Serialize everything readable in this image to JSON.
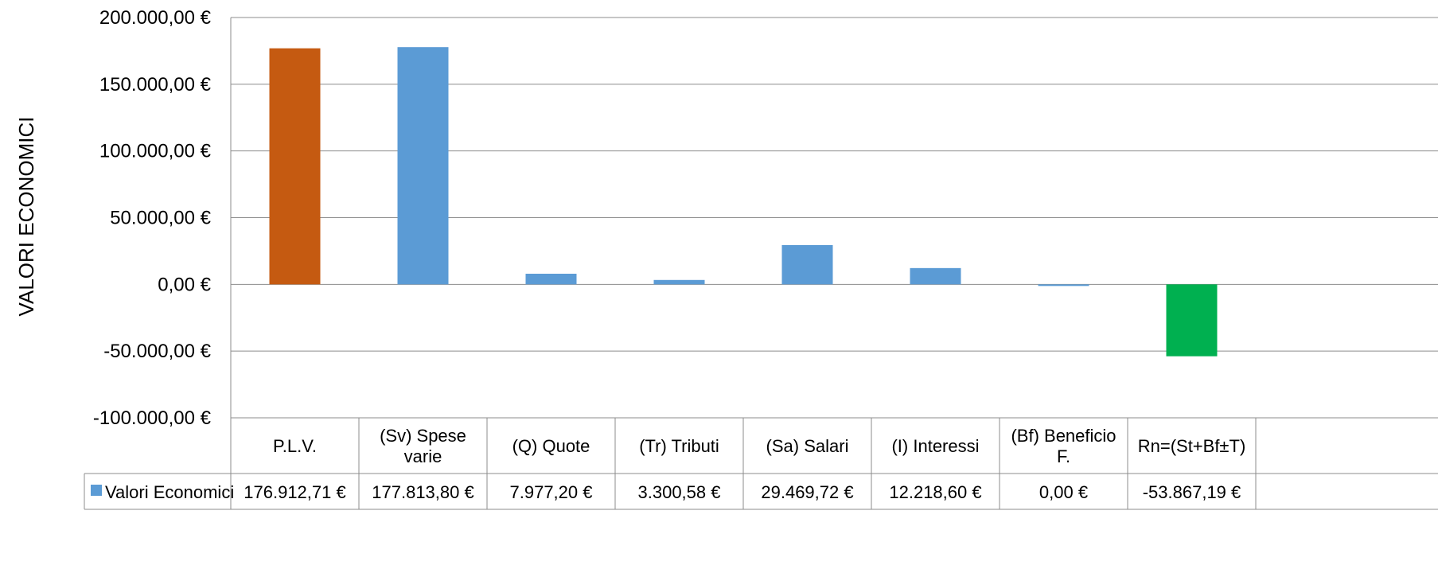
{
  "chart_data": {
    "type": "bar",
    "title": "",
    "xlabel": "",
    "ylabel": "VALORI ECONOMICI",
    "ylim": [
      -100000,
      200000
    ],
    "yticks": [
      200000,
      150000,
      100000,
      50000,
      0,
      -50000,
      -100000
    ],
    "ytick_labels": [
      "200.000,00 €",
      "150.000,00 €",
      "100.000,00 €",
      "50.000,00 €",
      "0,00 €",
      "-50.000,00 €",
      "-100.000,00 €"
    ],
    "grid": true,
    "legend": "data-table-left",
    "categories": [
      [
        "P.L.V."
      ],
      [
        "(Sv) Spese",
        "varie"
      ],
      [
        "(Q) Quote"
      ],
      [
        "(Tr) Tributi"
      ],
      [
        "(Sa) Salari"
      ],
      [
        "(I) Interessi"
      ],
      [
        "(Bf) Beneficio",
        "F."
      ],
      [
        "Rn=(St+Bf±T)"
      ]
    ],
    "series": [
      {
        "name": "Valori Economici",
        "color": "#5b9bd5",
        "values": [
          176912.71,
          177813.8,
          7977.2,
          3300.58,
          29469.72,
          12218.6,
          0.0,
          -53867.19
        ],
        "value_labels": [
          "176.912,71 €",
          "177.813,80 €",
          "7.977,20 €",
          "3.300,58 €",
          "29.469,72 €",
          "12.218,60 €",
          "0,00 €",
          "-53.867,19 €"
        ],
        "point_colors": [
          "#c55a11",
          "#5b9bd5",
          "#5b9bd5",
          "#5b9bd5",
          "#5b9bd5",
          "#5b9bd5",
          "#5b9bd5",
          "#00b050"
        ]
      }
    ]
  }
}
